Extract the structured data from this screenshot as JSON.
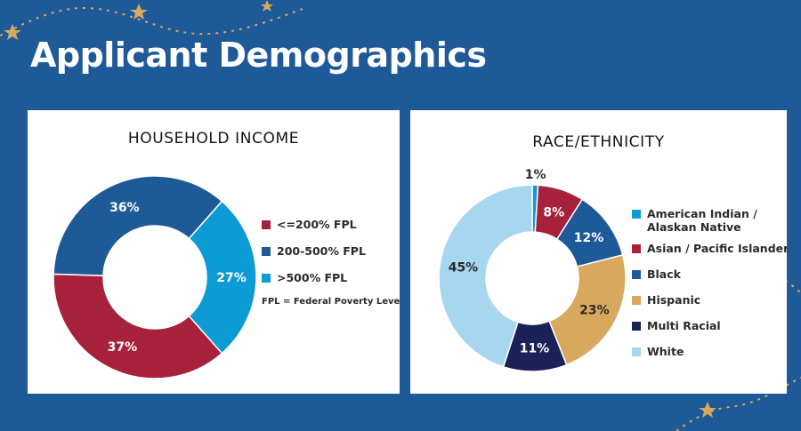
{
  "page": {
    "title": "Applicant Demographics"
  },
  "chart_data": [
    {
      "type": "pie",
      "donut": true,
      "title": "HOUSEHOLD INCOME",
      "categories": [
        "<=200% FPL",
        "200-500% FPL",
        ">500% FPL"
      ],
      "values": [
        37,
        36,
        27
      ],
      "value_labels": [
        "37%",
        "36%",
        "27%"
      ],
      "colors": [
        "#a8213b",
        "#1f5a98",
        "#0d9bd6"
      ],
      "legend_note": "FPL = Federal Poverty Level",
      "legend": "right"
    },
    {
      "type": "pie",
      "donut": true,
      "title": "RACE/ETHNICITY",
      "categories": [
        "American Indian / Alaskan Native",
        "Asian / Pacific Islander",
        "Black",
        "Hispanic",
        "Multi Racial",
        "White"
      ],
      "legend_lines": [
        [
          "American Indian /",
          "Alaskan Native"
        ],
        [
          "Asian / Pacific Islander"
        ],
        [
          "Black"
        ],
        [
          "Hispanic"
        ],
        [
          "Multi Racial"
        ],
        [
          "White"
        ]
      ],
      "values": [
        1,
        8,
        12,
        23,
        11,
        45
      ],
      "value_labels": [
        "1%",
        "8%",
        "12%",
        "23%",
        "11%",
        "45%"
      ],
      "colors": [
        "#0d9bd6",
        "#a8213b",
        "#1f5a98",
        "#d9a85f",
        "#1c2157",
        "#a6d7ef"
      ],
      "legend": "right"
    }
  ]
}
